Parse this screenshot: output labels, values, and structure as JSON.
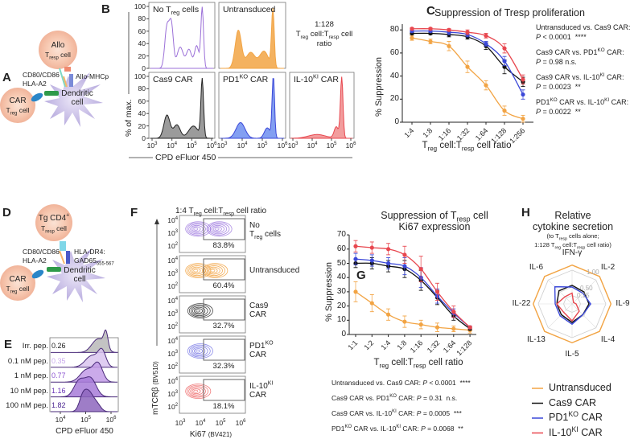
{
  "panel_labels": {
    "a": "A",
    "b": "B",
    "c": "C",
    "d": "D",
    "e": "E",
    "f": "F",
    "g": "G",
    "h": "H"
  },
  "diagram_a": {
    "tresp": [
      "Allo",
      "T<sub>resp</sub> cell"
    ],
    "car": [
      "CAR",
      "T<sub>reg</sub> cell"
    ],
    "dc": [
      "Dendritic",
      "cell"
    ],
    "costim": [
      "CD80/CD86",
      "HLA-A2"
    ],
    "mhc": "Allo-MHCp"
  },
  "diagram_d": {
    "tresp": [
      "Tg CD4<sup>+</sup>",
      "T<sub>resp</sub> cell"
    ],
    "car": [
      "CAR",
      "T<sub>reg</sub> cell"
    ],
    "dc": [
      "Dendritic",
      "cell"
    ],
    "costim": [
      "CD80/CD86",
      "HLA-A2"
    ],
    "mhc": [
      "HLA-DR4:",
      "GAD65<sub>555-567</sub>"
    ]
  },
  "colors": {
    "untransduced": "#f2a444",
    "cas9": "#111111",
    "pd1ko": "#3b48d8",
    "il10ki": "#e8474f",
    "no_treg": "#9b70d8"
  },
  "chart_data": [
    {
      "id": "B",
      "type": "histogram",
      "xlabel": "CPD eFluor 450",
      "ylabel": "% of max.",
      "x_ticks": [
        "10<sup>3</sup>",
        "10<sup>4</sup>",
        "10<sup>5</sup>",
        "10<sup>6</sup>"
      ],
      "y_ticks": [
        "0",
        "20",
        "40",
        "60",
        "80",
        "100"
      ],
      "annotation": [
        "1:128",
        "T<sub>reg</sub> cell:T<sub>resp</sub> cell",
        "ratio"
      ],
      "panels": [
        {
          "label": "No T<sub>reg</sub> cells",
          "color": "#9b70d8",
          "fill": false,
          "peaks": [
            [
              3.85,
              66,
              0.1
            ],
            [
              4.05,
              68,
              0.09
            ],
            [
              4.45,
              34,
              0.14
            ],
            [
              4.85,
              30,
              0.12
            ],
            [
              5.2,
              36,
              0.1
            ],
            [
              5.45,
              97,
              0.06
            ]
          ]
        },
        {
          "label": "Untransduced",
          "color": "#f2a444",
          "fill": true,
          "peaks": [
            [
              3.9,
              62,
              0.14
            ],
            [
              4.45,
              26,
              0.2
            ],
            [
              5.05,
              28,
              0.2
            ],
            [
              5.45,
              95,
              0.06
            ]
          ]
        },
        {
          "label": "Cas9 CAR",
          "color": "#222222",
          "fillcolor": "#8a8a8a",
          "fill": true,
          "peaks": [
            [
              3.85,
              38,
              0.14
            ],
            [
              4.3,
              22,
              0.15
            ],
            [
              5.05,
              20,
              0.22
            ],
            [
              5.45,
              95,
              0.06
            ]
          ]
        },
        {
          "label": "PD1<sup>KO</sup> CAR",
          "color": "#3b48d8",
          "fillcolor": "#6d8ef0",
          "fill": true,
          "peaks": [
            [
              4.0,
              24,
              0.2
            ],
            [
              5.2,
              16,
              0.13
            ],
            [
              5.47,
              94,
              0.055
            ]
          ]
        },
        {
          "label": "IL-10<sup>KI</sup> CAR",
          "color": "#e8474f",
          "fillcolor": "#f08c8c",
          "fill": true,
          "peaks": [
            [
              4.3,
              6,
              0.4
            ],
            [
              5.2,
              18,
              0.1
            ],
            [
              5.45,
              97,
              0.06
            ]
          ]
        }
      ]
    },
    {
      "id": "C",
      "type": "line",
      "title": "Suppression of Tresp proliferation",
      "xlabel": "T<sub>reg</sub> cell:T<sub>resp</sub> cell ratio",
      "ylabel": "% Suppression",
      "categories": [
        "1:4",
        "1:8",
        "1:16",
        "1:32",
        "1:64",
        "1:128",
        "1:256"
      ],
      "y_ticks": [
        0,
        20,
        40,
        60,
        80
      ],
      "ylim": [
        0,
        85
      ],
      "series": [
        {
          "key": "untransduced",
          "values": [
            73,
            70,
            66,
            48,
            32,
            10,
            3
          ],
          "error": [
            2,
            2,
            4,
            5,
            4,
            4,
            3
          ]
        },
        {
          "key": "cas9",
          "values": [
            77,
            77,
            76,
            74,
            66,
            48,
            35
          ],
          "error": [
            1,
            1,
            2,
            2,
            3,
            6,
            4
          ]
        },
        {
          "key": "pd1ko",
          "values": [
            79,
            79,
            78,
            76,
            68,
            53,
            24
          ],
          "error": [
            1,
            1,
            2,
            2,
            2,
            4,
            4
          ]
        },
        {
          "key": "il10ki",
          "values": [
            81,
            81,
            80,
            78,
            75,
            64,
            37
          ],
          "error": [
            1,
            1,
            1,
            2,
            2,
            4,
            4
          ]
        }
      ],
      "stats": [
        [
          "Untransduced vs. Cas9 CAR:",
          "<i>P</i> &lt; 0.0001 &nbsp;****"
        ],
        [
          "Cas9 CAR vs. PD1<sup>KO</sup> CAR:",
          "<i>P</i> = 0.98 n.s."
        ],
        [
          "Cas9 CAR vs. IL-10<sup>KI</sup> CAR:",
          "<i>P</i> = 0.0023 &nbsp;**"
        ],
        [
          "PD1<sup>KO</sup> CAR vs. IL-10<sup>KI</sup> CAR:",
          "<i>P</i> = 0.0022 &nbsp;**"
        ]
      ]
    },
    {
      "id": "E",
      "type": "histogram",
      "xlabel": "CPD eFluor 450",
      "x_ticks": [
        "10<sup>4</sup>",
        "10<sup>5</sup>",
        "10<sup>6</sup>"
      ],
      "rows": [
        {
          "label": "Irr. pep.",
          "value": "0.26",
          "color": "#b8b8b8",
          "text": "#222",
          "peaks": [
            [
              5.45,
              60,
              0.2
            ],
            [
              5.65,
              95,
              0.08
            ],
            [
              5.2,
              40,
              0.2
            ]
          ]
        },
        {
          "label": "0.1 nM pep.",
          "value": "0.35",
          "color": "#d9c4ee",
          "text": "#c9a8ec",
          "peaks": [
            [
              5.1,
              60,
              0.25
            ],
            [
              5.5,
              80,
              0.15
            ]
          ]
        },
        {
          "label": "1 nM pep.",
          "value": "0.77",
          "color": "#c29be6",
          "text": "#8a52d0",
          "peaks": [
            [
              4.9,
              60,
              0.25
            ],
            [
              5.35,
              85,
              0.18
            ]
          ]
        },
        {
          "label": "10 nM pep.",
          "value": "1.16",
          "color": "#a77bd8",
          "text": "#6a34b8",
          "peaks": [
            [
              4.6,
              70,
              0.2
            ],
            [
              5.05,
              85,
              0.22
            ]
          ]
        },
        {
          "label": "100 nM pep.",
          "value": "1.82",
          "color": "#8d66bd",
          "text": "#4a2590",
          "peaks": [
            [
              4.75,
              80,
              0.14
            ],
            [
              5.0,
              95,
              0.16
            ],
            [
              5.3,
              40,
              0.15
            ]
          ]
        }
      ]
    },
    {
      "id": "F",
      "type": "contour",
      "title": "1:4 T<sub>reg</sub> cell:T<sub>resp</sub> cell ratio",
      "xlabel": "Ki67 <span style='font-size:80%'>(BV421)</span>",
      "ylabel": "mTCRβ <span style='font-size:80%'>(BV510)</span>",
      "x_ticks": [
        "10<sup>3</sup>",
        "10<sup>4</sup>",
        "10<sup>5</sup>",
        "10<sup>6</sup>"
      ],
      "y_ticks": [
        "10<sup>4</sup>",
        "10<sup>3</sup>",
        "10<sup>2</sup>"
      ],
      "rows": [
        {
          "label": [
            "No",
            "T<sub>reg</sub> cells"
          ],
          "percent": "83.8%",
          "color": "#a27ee0",
          "clusters": [
            [
              3.9,
              3.4
            ],
            [
              4.9,
              3.4
            ]
          ]
        },
        {
          "label": [
            "Untransduced"
          ],
          "percent": "60.4%",
          "color": "#f2a444",
          "clusters": [
            [
              3.9,
              3.3
            ],
            [
              4.7,
              3.3
            ]
          ]
        },
        {
          "label": [
            "Cas9",
            "CAR"
          ],
          "percent": "32.7%",
          "color": "#333333",
          "clusters": [
            [
              4.0,
              3.3
            ]
          ]
        },
        {
          "label": [
            "PD1<sup>KO</sup>",
            "CAR"
          ],
          "percent": "32.3%",
          "color": "#7c7ce6",
          "clusters": [
            [
              4.0,
              3.3
            ]
          ]
        },
        {
          "label": [
            "IL-10<sup>KI</sup>",
            "CAR"
          ],
          "percent": "18.1%",
          "color": "#ee6a6a",
          "clusters": [
            [
              3.9,
              3.3
            ]
          ]
        }
      ]
    },
    {
      "id": "G",
      "type": "line",
      "title": [
        "Suppression of T<sub>resp</sub> cell",
        "Ki67 expression"
      ],
      "xlabel": "T<sub>reg</sub> cell:T<sub>resp</sub> cell ratio",
      "ylabel": "% Suppression",
      "categories": [
        "1:1",
        "1:2",
        "1:4",
        "1:8",
        "1:16",
        "1:32",
        "1:64",
        "1:128"
      ],
      "y_ticks": [
        0,
        10,
        20,
        30,
        40,
        50,
        60,
        70
      ],
      "ylim": [
        0,
        70
      ],
      "series": [
        {
          "key": "untransduced",
          "values": [
            30,
            22,
            14,
            9,
            7,
            5,
            4,
            3
          ],
          "error": [
            7,
            6,
            4,
            4,
            3,
            3,
            2,
            2
          ]
        },
        {
          "key": "cas9",
          "values": [
            50,
            50,
            48,
            46,
            38,
            26,
            13,
            4
          ],
          "error": [
            3,
            4,
            4,
            6,
            7,
            5,
            3,
            1
          ]
        },
        {
          "key": "pd1ko",
          "values": [
            53,
            52,
            50,
            48,
            40,
            27,
            15,
            5
          ],
          "error": [
            4,
            4,
            4,
            6,
            7,
            5,
            3,
            1
          ]
        },
        {
          "key": "il10ki",
          "values": [
            62,
            61,
            60,
            56,
            46,
            30,
            16,
            5
          ],
          "error": [
            4,
            4,
            4,
            6,
            9,
            6,
            4,
            1
          ]
        }
      ],
      "stats": [
        "Untransduced vs. Cas9 CAR: <i>P</i> &lt; 0.0001 &nbsp;****",
        "Cas9 CAR vs. PD1<sup>KO</sup> CAR: <i>P</i> = 0.31 &nbsp;n.s.",
        "Cas9 CAR vs. IL-10<sup>KI</sup> CAR: <i>P</i> = 0.0005 &nbsp;***",
        "PD1<sup>KO</sup> CAR vs. IL-10<sup>KI</sup> CAR: <i>P</i> = 0.0068 &nbsp;**"
      ]
    },
    {
      "id": "H",
      "type": "radar",
      "title": [
        "Relative",
        "cytokine secretion"
      ],
      "subtitle": [
        "(to T<sub>resp</sub> cells alone;",
        "1:128 T<sub>reg</sub> cell:T<sub>resp</sub> cell ratio)"
      ],
      "axes": [
        "IFN-γ",
        "IL-2",
        "IL-9",
        "IL-4",
        "IL-5",
        "IL-13",
        "IL-22",
        "IL-6"
      ],
      "rings": [
        0.25,
        0.5,
        1.0
      ],
      "ring_labels": [
        "0.25",
        "0.50",
        "1.00"
      ],
      "series": [
        {
          "key": "untransduced",
          "values": [
            1.15,
            1.15,
            1.15,
            1.15,
            1.15,
            1.15,
            1.15,
            1.15
          ]
        },
        {
          "key": "cas9",
          "values": [
            0.55,
            0.5,
            0.5,
            0.45,
            0.55,
            0.45,
            0.45,
            0.55
          ]
        },
        {
          "key": "pd1ko",
          "values": [
            0.5,
            0.45,
            0.55,
            0.45,
            0.6,
            0.5,
            0.5,
            0.72
          ]
        },
        {
          "key": "il10ki",
          "values": [
            0.32,
            0.06,
            0.12,
            0.3,
            0.5,
            0.35,
            0.45,
            0.3
          ]
        }
      ]
    }
  ],
  "legend": [
    {
      "key": "untransduced",
      "label": "Untransduced"
    },
    {
      "key": "cas9",
      "label": "Cas9 CAR"
    },
    {
      "key": "pd1ko",
      "label": "PD1<sup>KO</sup> CAR"
    },
    {
      "key": "il10ki",
      "label": "IL-10<sup>KI</sup> CAR"
    }
  ]
}
